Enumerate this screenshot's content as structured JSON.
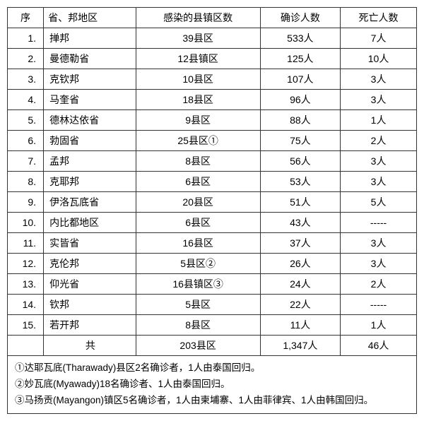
{
  "columns": {
    "seq": "序",
    "region": "省、邦地区",
    "towns": "感染的县镇区数",
    "cases": "确诊人数",
    "deaths": "死亡人数"
  },
  "rows": [
    {
      "seq": "1.",
      "region": "掸邦",
      "towns": "39县区",
      "cases": "533人",
      "deaths": "7人"
    },
    {
      "seq": "2.",
      "region": "曼德勒省",
      "towns": "12县镇区",
      "cases": "125人",
      "deaths": "10人"
    },
    {
      "seq": "3.",
      "region": "克钦邦",
      "towns": "10县区",
      "cases": "107人",
      "deaths": "3人"
    },
    {
      "seq": "4.",
      "region": "马奎省",
      "towns": "18县区",
      "cases": "96人",
      "deaths": "3人"
    },
    {
      "seq": "5.",
      "region": "德林达依省",
      "towns": "9县区",
      "cases": "88人",
      "deaths": "1人"
    },
    {
      "seq": "6.",
      "region": "勃固省",
      "towns": "25县区①",
      "cases": "75人",
      "deaths": "2人"
    },
    {
      "seq": "7.",
      "region": "孟邦",
      "towns": "8县区",
      "cases": "56人",
      "deaths": "3人"
    },
    {
      "seq": "8.",
      "region": "克耶邦",
      "towns": "6县区",
      "cases": "53人",
      "deaths": "3人"
    },
    {
      "seq": "9.",
      "region": "伊洛瓦底省",
      "towns": "20县区",
      "cases": "51人",
      "deaths": "5人"
    },
    {
      "seq": "10.",
      "region": "内比都地区",
      "towns": "6县区",
      "cases": "43人",
      "deaths": "-----"
    },
    {
      "seq": "11.",
      "region": "实皆省",
      "towns": "16县区",
      "cases": "37人",
      "deaths": "3人"
    },
    {
      "seq": "12.",
      "region": "克伦邦",
      "towns": "5县区②",
      "cases": "26人",
      "deaths": "3人"
    },
    {
      "seq": "13.",
      "region": "仰光省",
      "towns": "16县镇区③",
      "cases": "24人",
      "deaths": "2人"
    },
    {
      "seq": "14.",
      "region": "钦邦",
      "towns": "5县区",
      "cases": "22人",
      "deaths": "-----"
    },
    {
      "seq": "15.",
      "region": "若开邦",
      "towns": "8县区",
      "cases": "11人",
      "deaths": "1人"
    }
  ],
  "total": {
    "label": "共",
    "towns": "203县区",
    "cases": "1,347人",
    "deaths": "46人"
  },
  "notes": [
    "①达耶瓦底(Tharawady)县区2名确诊者，1人由泰国回归。",
    "②妙瓦底(Myawady)18名确诊者、1人由泰国回归。",
    "③马扬贡(Mayangon)镇区5名确诊者，1人由柬埔寨、1人由菲律宾、1人由韩国回归。"
  ]
}
